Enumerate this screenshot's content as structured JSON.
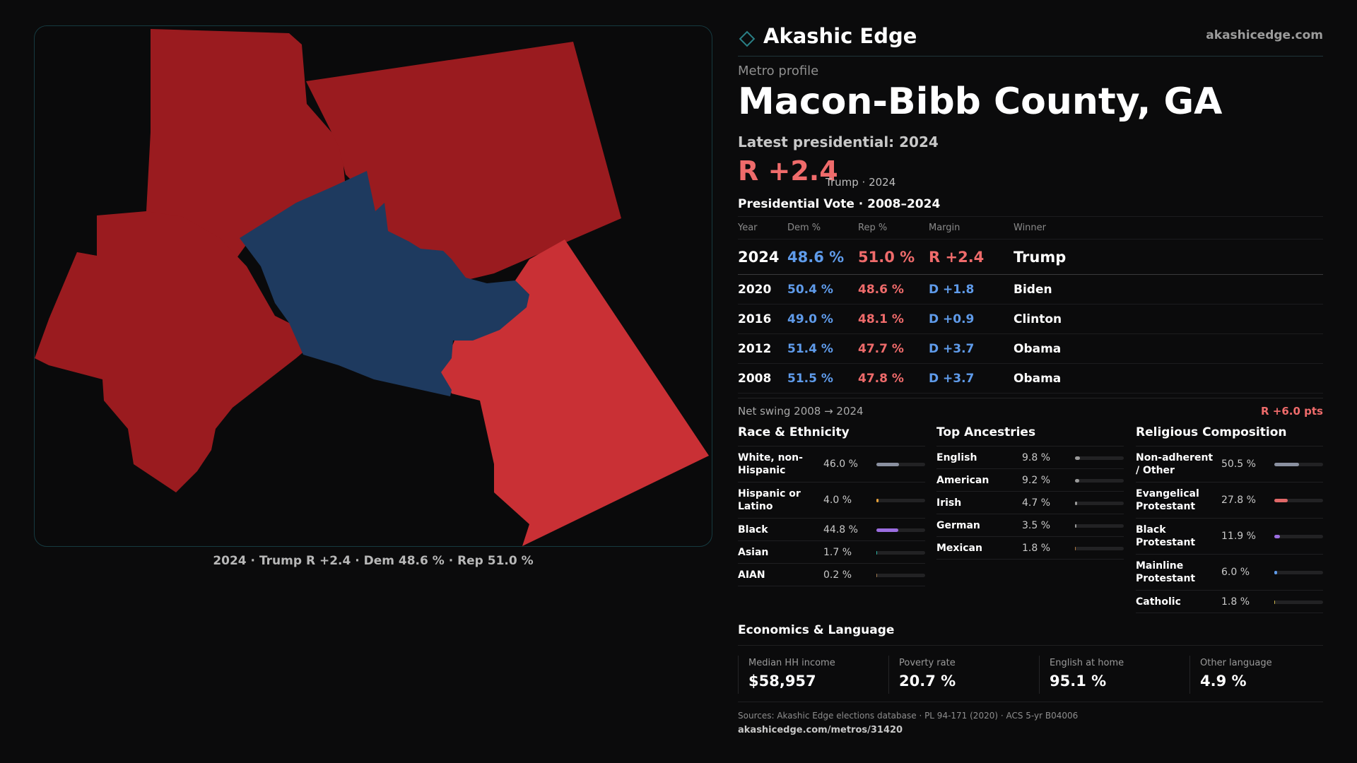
{
  "map": {
    "caption": "2024 · Trump R +2.4 · Dem 48.6 % · Rep 51.0 %",
    "colors": {
      "strong_rep": "#9a1b1f",
      "lean_rep": "#c93035",
      "dem": "#1e3a5f",
      "border": "#163a40"
    }
  },
  "brand": {
    "name": "Akashic Edge",
    "url": "akashicedge.com",
    "icon": "diamond-icon",
    "accent": "#163a40"
  },
  "header": {
    "eyebrow": "Metro profile",
    "title": "Macon-Bibb County, GA",
    "latest_label": "Latest presidential: 2024",
    "latest_margin": "R +2.4",
    "latest_sub": "Trump · 2024"
  },
  "vote": {
    "title": "Presidential Vote · 2008–2024",
    "headers": {
      "year": "Year",
      "dem": "Dem %",
      "rep": "Rep %",
      "margin": "Margin",
      "winner": "Winner"
    },
    "rows": [
      {
        "year": "2024",
        "dem": "48.6 %",
        "rep": "51.0 %",
        "margin": "R +2.4",
        "winner": "Trump"
      },
      {
        "year": "2020",
        "dem": "50.4 %",
        "rep": "48.6 %",
        "margin": "D +1.8",
        "winner": "Biden"
      },
      {
        "year": "2016",
        "dem": "49.0 %",
        "rep": "48.1 %",
        "margin": "D +0.9",
        "winner": "Clinton"
      },
      {
        "year": "2012",
        "dem": "51.4 %",
        "rep": "47.7 %",
        "margin": "D +3.7",
        "winner": "Obama"
      },
      {
        "year": "2008",
        "dem": "51.5 %",
        "rep": "47.8 %",
        "margin": "D +3.7",
        "winner": "Obama"
      }
    ],
    "swing_label": "Net swing 2008 → 2024",
    "swing_value": "R +6.0 pts",
    "colors": {
      "dem": "#5f9bea",
      "rep": "#ef6b6b"
    }
  },
  "race": {
    "title": "Race & Ethnicity",
    "items": [
      {
        "label": "White, non-Hispanic",
        "value": "46.0 %",
        "fraction": 0.46,
        "color": "#8a90a0"
      },
      {
        "label": "Hispanic or Latino",
        "value": "4.0 %",
        "fraction": 0.04,
        "color": "#e8a23a"
      },
      {
        "label": "Black",
        "value": "44.8 %",
        "fraction": 0.448,
        "color": "#9b6de0"
      },
      {
        "label": "Asian",
        "value": "1.7 %",
        "fraction": 0.017,
        "color": "#2bb3a3"
      },
      {
        "label": "AIAN",
        "value": "0.2 %",
        "fraction": 0.002,
        "color": "#a07a50"
      }
    ]
  },
  "ancestry": {
    "title": "Top Ancestries",
    "items": [
      {
        "label": "English",
        "value": "9.8 %",
        "fraction": 0.098,
        "color": "#9a9a9a"
      },
      {
        "label": "American",
        "value": "9.2 %",
        "fraction": 0.092,
        "color": "#9a9a9a"
      },
      {
        "label": "Irish",
        "value": "4.7 %",
        "fraction": 0.047,
        "color": "#9a9a9a"
      },
      {
        "label": "German",
        "value": "3.5 %",
        "fraction": 0.035,
        "color": "#9a9a9a"
      },
      {
        "label": "Mexican",
        "value": "1.8 %",
        "fraction": 0.018,
        "color": "#b07a40"
      }
    ]
  },
  "religion": {
    "title": "Religious Composition",
    "items": [
      {
        "label": "Non-adherent / Other",
        "value": "50.5 %",
        "fraction": 0.505,
        "color": "#8a90a0"
      },
      {
        "label": "Evangelical Protestant",
        "value": "27.8 %",
        "fraction": 0.278,
        "color": "#e06868"
      },
      {
        "label": "Black Protestant",
        "value": "11.9 %",
        "fraction": 0.119,
        "color": "#9b6de0"
      },
      {
        "label": "Mainline Protestant",
        "value": "6.0 %",
        "fraction": 0.06,
        "color": "#5f9bea"
      },
      {
        "label": "Catholic",
        "value": "1.8 %",
        "fraction": 0.018,
        "color": "#c9b24a"
      }
    ]
  },
  "economics": {
    "title": "Economics & Language",
    "cards": [
      {
        "label": "Median HH income",
        "value": "$58,957"
      },
      {
        "label": "Poverty rate",
        "value": "20.7 %"
      },
      {
        "label": "English at home",
        "value": "95.1 %"
      },
      {
        "label": "Other language",
        "value": "4.9 %"
      }
    ]
  },
  "footer": {
    "sources": "Sources: Akashic Edge elections database · PL 94-171 (2020) · ACS 5-yr B04006",
    "url": "akashicedge.com/metros/31420"
  }
}
